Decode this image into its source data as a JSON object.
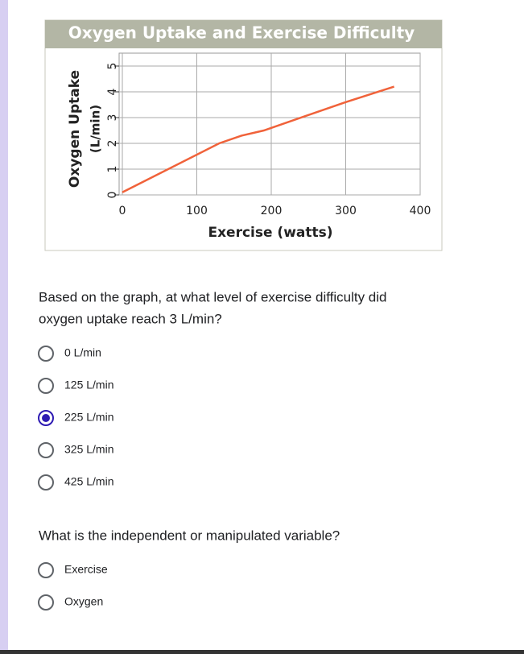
{
  "chart_data": {
    "type": "line",
    "title": "Oxygen Uptake and Exercise Difficulty",
    "xlabel": "Exercise (watts)",
    "ylabel": [
      "Oxygen Uptake",
      "(L/min)"
    ],
    "x": [
      0,
      130,
      160,
      190,
      300,
      365
    ],
    "series": [
      {
        "name": "Oxygen Uptake",
        "color": "#f0623a",
        "values": [
          0.1,
          2.0,
          2.3,
          2.5,
          3.6,
          4.2
        ]
      }
    ],
    "xlim": [
      0,
      400
    ],
    "xticks": [
      0,
      100,
      200,
      300,
      400
    ],
    "ylim": [
      0,
      5.5
    ],
    "yticks": [
      0,
      1,
      2,
      3,
      4,
      5
    ],
    "grid": true
  },
  "questions": [
    {
      "text": [
        "Based on the graph, at what level of exercise difficulty did",
        "oxygen uptake reach 3 L/min?"
      ],
      "options": [
        "0 L/min",
        "125 L/min",
        "225 L/min",
        "325 L/min",
        "425 L/min"
      ],
      "selected": 2
    },
    {
      "text": [
        "What is the independent or manipulated variable?"
      ],
      "options": [
        "Exercise",
        "Oxygen"
      ],
      "selected": null
    }
  ]
}
